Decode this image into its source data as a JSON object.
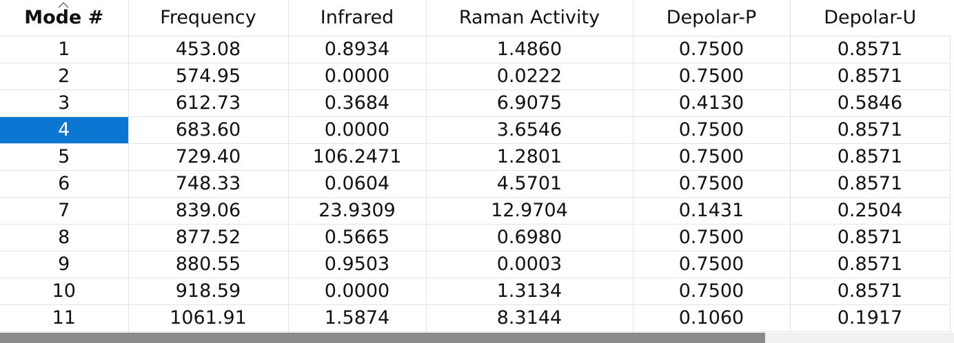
{
  "table": {
    "columns": [
      "Mode #",
      "Frequency",
      "Infrared",
      "Raman Activity",
      "Depolar-P",
      "Depolar-U"
    ],
    "sorted_column": "Mode #",
    "sort_icon": "chevron-up-icon",
    "selected_row": 4,
    "selection_color": "#0b77d3",
    "rows": [
      {
        "mode": "1",
        "frequency": "453.08",
        "infrared": "0.8934",
        "raman": "1.4860",
        "depolar_p": "0.7500",
        "depolar_u": "0.8571"
      },
      {
        "mode": "2",
        "frequency": "574.95",
        "infrared": "0.0000",
        "raman": "0.0222",
        "depolar_p": "0.7500",
        "depolar_u": "0.8571"
      },
      {
        "mode": "3",
        "frequency": "612.73",
        "infrared": "0.3684",
        "raman": "6.9075",
        "depolar_p": "0.4130",
        "depolar_u": "0.5846"
      },
      {
        "mode": "4",
        "frequency": "683.60",
        "infrared": "0.0000",
        "raman": "3.6546",
        "depolar_p": "0.7500",
        "depolar_u": "0.8571"
      },
      {
        "mode": "5",
        "frequency": "729.40",
        "infrared": "106.2471",
        "raman": "1.2801",
        "depolar_p": "0.7500",
        "depolar_u": "0.8571"
      },
      {
        "mode": "6",
        "frequency": "748.33",
        "infrared": "0.0604",
        "raman": "4.5701",
        "depolar_p": "0.7500",
        "depolar_u": "0.8571"
      },
      {
        "mode": "7",
        "frequency": "839.06",
        "infrared": "23.9309",
        "raman": "12.9704",
        "depolar_p": "0.1431",
        "depolar_u": "0.2504"
      },
      {
        "mode": "8",
        "frequency": "877.52",
        "infrared": "0.5665",
        "raman": "0.6980",
        "depolar_p": "0.7500",
        "depolar_u": "0.8571"
      },
      {
        "mode": "9",
        "frequency": "880.55",
        "infrared": "0.9503",
        "raman": "0.0003",
        "depolar_p": "0.7500",
        "depolar_u": "0.8571"
      },
      {
        "mode": "10",
        "frequency": "918.59",
        "infrared": "0.0000",
        "raman": "1.3134",
        "depolar_p": "0.7500",
        "depolar_u": "0.8571"
      },
      {
        "mode": "11",
        "frequency": "1061.91",
        "infrared": "1.5874",
        "raman": "8.3144",
        "depolar_p": "0.1060",
        "depolar_u": "0.1917"
      }
    ]
  }
}
